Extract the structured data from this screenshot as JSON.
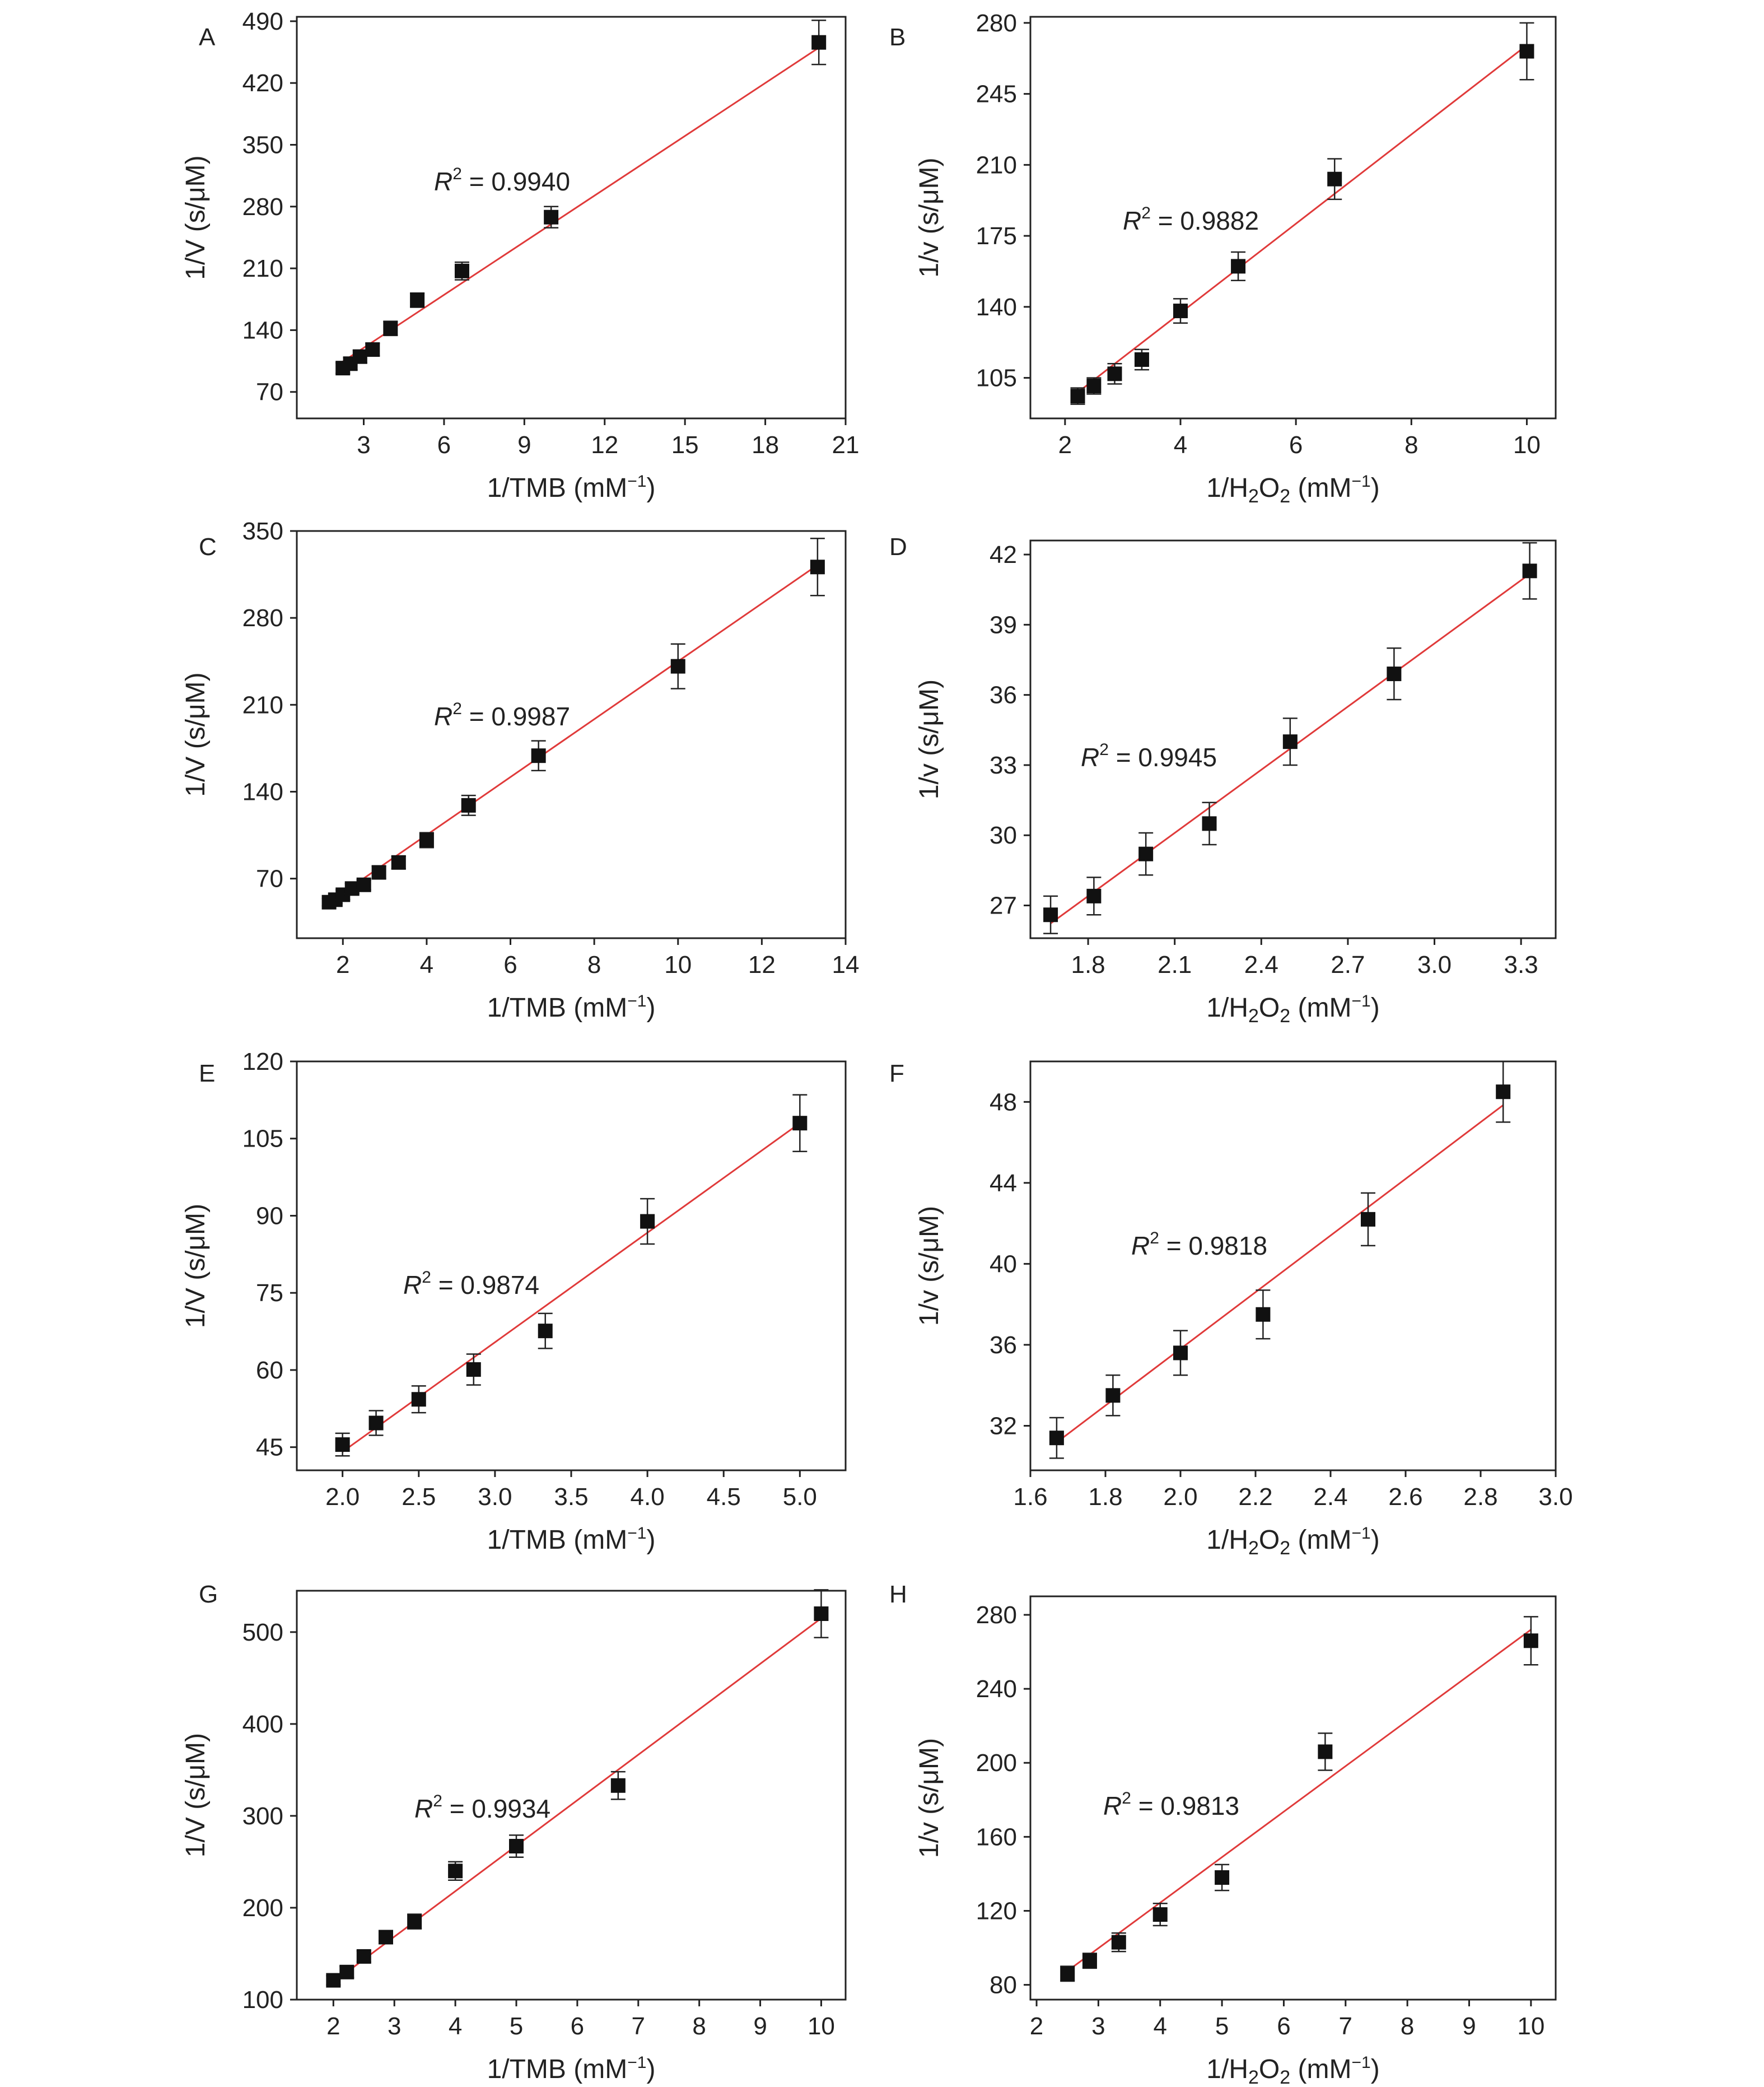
{
  "colors": {
    "fit_line": "#e03a3a",
    "marker": "#111111",
    "axis": "#222222",
    "background": "#ffffff"
  },
  "chart_data": [
    {
      "panel": "A",
      "type": "scatter",
      "xlabel": "1/TMB (mM⁻¹)",
      "ylabel": "1/V (s/μM)",
      "xlim": [
        0.5,
        21
      ],
      "ylim": [
        40,
        495
      ],
      "xticks": [
        3,
        6,
        9,
        12,
        15,
        18,
        21
      ],
      "yticks": [
        70,
        140,
        210,
        280,
        350,
        420,
        490
      ],
      "x": [
        2.22,
        2.5,
        2.86,
        3.33,
        4.0,
        5.0,
        6.67,
        10.0,
        20.0
      ],
      "y": [
        97,
        102,
        110,
        118,
        142,
        174,
        207,
        268,
        466
      ],
      "yerr": [
        6,
        7,
        7,
        7,
        8,
        8,
        10,
        12,
        25
      ],
      "r2": "0.9940",
      "fit": {
        "slope": 20.0,
        "intercept": 60.0
      }
    },
    {
      "panel": "B",
      "type": "scatter",
      "xlabel": "1/H₂O₂ (mM⁻¹)",
      "ylabel": "1/v (s/μM)",
      "xlim": [
        1.4,
        10.5
      ],
      "ylim": [
        85,
        283
      ],
      "xticks": [
        2,
        4,
        6,
        8,
        10
      ],
      "yticks": [
        105,
        140,
        175,
        210,
        245,
        280
      ],
      "x": [
        2.22,
        2.5,
        2.86,
        3.33,
        4.0,
        5.0,
        6.67,
        10.0
      ],
      "y": [
        96,
        101,
        107,
        114,
        138,
        160,
        203,
        266
      ],
      "yerr": [
        4,
        4,
        5,
        5,
        6,
        7,
        10,
        14
      ],
      "r2": "0.9882",
      "fit": {
        "slope": 22.0,
        "intercept": 49.0
      }
    },
    {
      "panel": "C",
      "type": "scatter",
      "xlabel": "1/TMB (mM⁻¹)",
      "ylabel": "1/V (s/μM)",
      "xlim": [
        0.9,
        14
      ],
      "ylim": [
        22,
        350
      ],
      "xticks": [
        2,
        4,
        6,
        8,
        10,
        12,
        14
      ],
      "yticks": [
        70,
        140,
        210,
        280,
        350
      ],
      "x": [
        1.67,
        1.82,
        2.0,
        2.22,
        2.5,
        2.86,
        3.33,
        4.0,
        5.0,
        6.67,
        10.0,
        13.33
      ],
      "y": [
        51,
        53,
        57,
        62,
        65,
        75,
        83,
        101,
        129,
        169,
        241,
        321
      ],
      "yerr": [
        3,
        3,
        4,
        4,
        4,
        5,
        5,
        6,
        8,
        12,
        18,
        23
      ],
      "r2": "0.9987",
      "fit": {
        "slope": 23.3,
        "intercept": 12.0
      }
    },
    {
      "panel": "D",
      "type": "scatter",
      "xlabel": "1/H₂O₂ (mM⁻¹)",
      "ylabel": "1/v (s/μM)",
      "xlim": [
        1.6,
        3.42
      ],
      "ylim": [
        25.6,
        42.6
      ],
      "xticks": [
        1.8,
        2.1,
        2.4,
        2.7,
        3.0,
        3.3
      ],
      "yticks": [
        27,
        30,
        33,
        36,
        39,
        42
      ],
      "x": [
        1.67,
        1.82,
        2.0,
        2.22,
        2.5,
        2.86,
        3.33
      ],
      "y": [
        26.6,
        27.4,
        29.2,
        30.5,
        34.0,
        36.9,
        41.3
      ],
      "yerr": [
        0.8,
        0.8,
        0.9,
        0.9,
        1.0,
        1.1,
        1.2
      ],
      "r2": "0.9945",
      "fit": {
        "slope": 9.0,
        "intercept": 11.2
      }
    },
    {
      "panel": "E",
      "type": "scatter",
      "xlabel": "1/TMB (mM⁻¹)",
      "ylabel": "1/V (s/μM)",
      "xlim": [
        1.7,
        5.3
      ],
      "ylim": [
        40.5,
        120
      ],
      "xticks": [
        2.0,
        2.5,
        3.0,
        3.5,
        4.0,
        4.5,
        5.0
      ],
      "yticks": [
        45,
        60,
        75,
        90,
        105,
        120
      ],
      "x": [
        2.0,
        2.22,
        2.5,
        2.86,
        3.33,
        4.0,
        5.0
      ],
      "y": [
        45.5,
        49.7,
        54.3,
        60.1,
        67.6,
        88.9,
        108.0
      ],
      "yerr": [
        2.2,
        2.4,
        2.6,
        3.0,
        3.4,
        4.4,
        5.5
      ],
      "r2": "0.9874",
      "fit": {
        "slope": 21.3,
        "intercept": 1.5
      }
    },
    {
      "panel": "F",
      "type": "scatter",
      "xlabel": "1/H₂O₂ (mM⁻¹)",
      "ylabel": "1/v (s/μM)",
      "xlim": [
        1.6,
        3.0
      ],
      "ylim": [
        29.8,
        50.0
      ],
      "xticks": [
        1.6,
        1.8,
        2.0,
        2.2,
        2.4,
        2.6,
        2.8,
        3.0
      ],
      "yticks": [
        32,
        36,
        40,
        44,
        48
      ],
      "x": [
        1.67,
        1.82,
        2.0,
        2.22,
        2.5,
        2.86
      ],
      "y": [
        31.4,
        33.5,
        35.6,
        37.5,
        42.2,
        48.5
      ],
      "yerr": [
        1.0,
        1.0,
        1.1,
        1.2,
        1.3,
        1.5
      ],
      "r2": "0.9818",
      "fit": {
        "slope": 14.0,
        "intercept": 7.8
      }
    },
    {
      "panel": "G",
      "type": "scatter",
      "xlabel": "1/TMB (mM⁻¹)",
      "ylabel": "1/V (s/μM)",
      "xlim": [
        1.4,
        10.4
      ],
      "ylim": [
        100,
        545
      ],
      "xticks": [
        2,
        3,
        4,
        5,
        6,
        7,
        8,
        9,
        10
      ],
      "yticks": [
        100,
        200,
        300,
        400,
        500
      ],
      "x": [
        2.0,
        2.22,
        2.5,
        2.86,
        3.33,
        4.0,
        5.0,
        6.67,
        10.0
      ],
      "y": [
        121,
        130,
        147,
        168,
        185,
        240,
        267,
        333,
        520
      ],
      "yerr": [
        5,
        6,
        6,
        7,
        8,
        10,
        12,
        15,
        26
      ],
      "r2": "0.9934",
      "fit": {
        "slope": 49.5,
        "intercept": 20.0
      }
    },
    {
      "panel": "H",
      "type": "scatter",
      "xlabel": "1/H₂O₂ (mM⁻¹)",
      "ylabel": "1/v (s/μM)",
      "xlim": [
        1.9,
        10.4
      ],
      "ylim": [
        72,
        290
      ],
      "xticks": [
        2,
        3,
        4,
        5,
        6,
        7,
        8,
        9,
        10
      ],
      "yticks": [
        80,
        120,
        160,
        200,
        240,
        280
      ],
      "x": [
        2.5,
        2.86,
        3.33,
        4.0,
        5.0,
        6.67,
        10.0
      ],
      "y": [
        86,
        93,
        103,
        118,
        138,
        206,
        266
      ],
      "yerr": [
        4,
        4,
        5,
        6,
        7,
        10,
        13
      ],
      "r2": "0.9813",
      "fit": {
        "slope": 24.6,
        "intercept": 26.0
      }
    }
  ]
}
